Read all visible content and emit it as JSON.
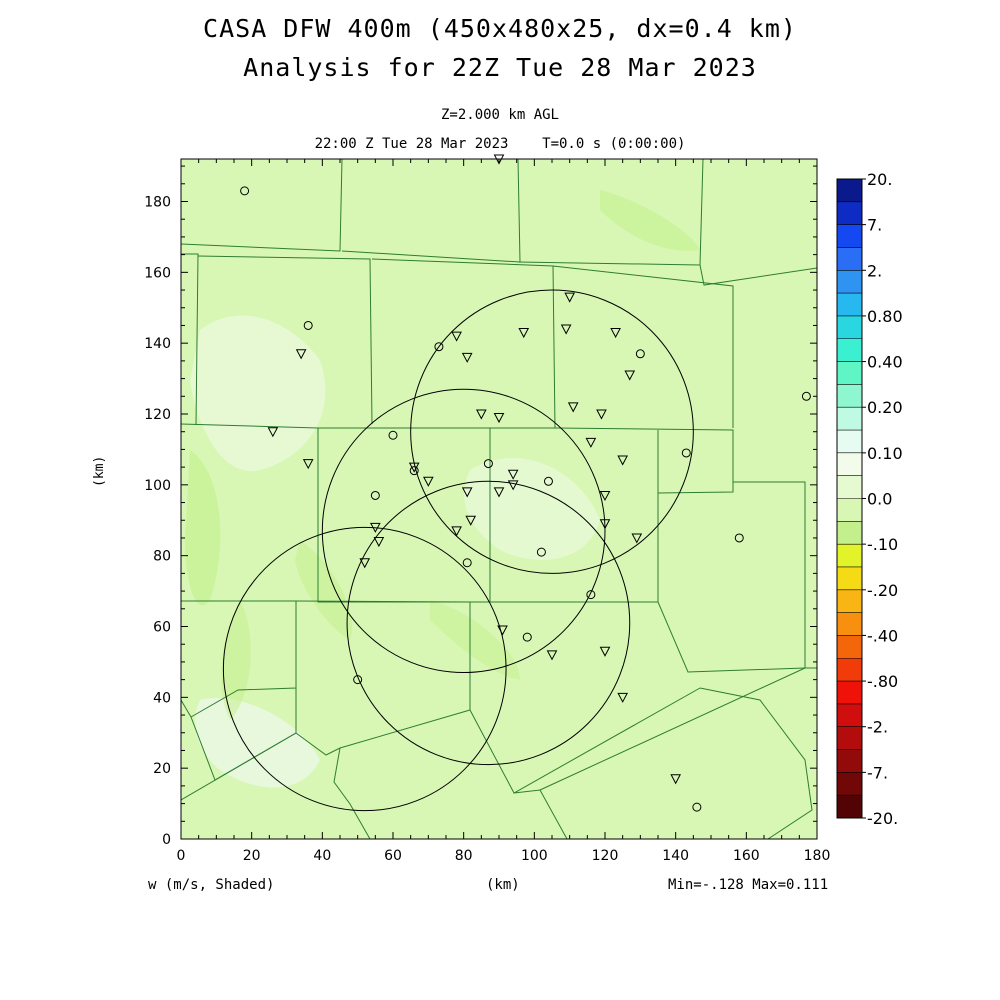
{
  "header": {
    "title_line1": "CASA DFW 400m (450x480x25, dx=0.4 km)",
    "title_line2": "Analysis for 22Z Tue 28 Mar 2023",
    "level": "Z=2.000 km AGL",
    "time": "22:00 Z Tue 28 Mar 2023    T=0.0 s (0:00:00)"
  },
  "footer": {
    "field": "w (m/s, Shaded)",
    "x_unit": "(km)",
    "stats": "Min=-.128 Max=0.111"
  },
  "colors": {
    "background_field": "#d8f7b4",
    "county_lines": "#2e7d32"
  },
  "chart_data": {
    "type": "heatmap",
    "xlabel": "(km)",
    "ylabel": "(km)",
    "xlim": [
      0,
      180
    ],
    "ylim": [
      0,
      192
    ],
    "x_ticks": [
      0,
      20,
      40,
      60,
      80,
      100,
      120,
      140,
      160,
      180
    ],
    "y_ticks": [
      0,
      20,
      40,
      60,
      80,
      100,
      120,
      140,
      160,
      180
    ],
    "field": "w (m/s)",
    "min": -0.128,
    "max": 0.111,
    "colorbar": {
      "labels": [
        "20.",
        "7.",
        "2.",
        "0.80",
        "0.40",
        "0.20",
        "0.10",
        "0.0",
        "-.10",
        "-.20",
        "-.40",
        "-.80",
        "-2.",
        "-7.",
        "-20."
      ],
      "colors": [
        "#0a1a8c",
        "#0e2bc4",
        "#1448f0",
        "#2a6ef5",
        "#2f93f2",
        "#27b8f0",
        "#2ad6e0",
        "#3bf0d0",
        "#5ff5c4",
        "#8ff7cf",
        "#bffae2",
        "#e6fbf1",
        "#f3fbea",
        "#e6fad2",
        "#d8f7b4",
        "#c3f08c",
        "#e2f32a",
        "#f4db16",
        "#f8b514",
        "#f7900e",
        "#f4660a",
        "#f13b08",
        "#ef1208",
        "#d10e0e",
        "#b30c0c",
        "#930a0a",
        "#720707",
        "#520404"
      ]
    },
    "radar_circles": [
      {
        "center": [
          105,
          115
        ],
        "radius": 40
      },
      {
        "center": [
          80,
          87
        ],
        "radius": 40
      },
      {
        "center": [
          87,
          61
        ],
        "radius": 40
      },
      {
        "center": [
          52,
          48
        ],
        "radius": 40
      }
    ],
    "triangle_markers": [
      [
        90,
        192
      ],
      [
        110,
        153
      ],
      [
        78,
        142
      ],
      [
        97,
        143
      ],
      [
        109,
        144
      ],
      [
        123,
        143
      ],
      [
        81,
        136
      ],
      [
        127,
        131
      ],
      [
        34,
        137
      ],
      [
        111,
        122
      ],
      [
        119,
        120
      ],
      [
        85,
        120
      ],
      [
        90,
        119
      ],
      [
        26,
        115
      ],
      [
        116,
        112
      ],
      [
        125,
        107
      ],
      [
        36,
        106
      ],
      [
        66,
        105
      ],
      [
        94,
        103
      ],
      [
        70,
        101
      ],
      [
        94,
        100
      ],
      [
        81,
        98
      ],
      [
        90,
        98
      ],
      [
        120,
        97
      ],
      [
        82,
        90
      ],
      [
        120,
        89
      ],
      [
        55,
        88
      ],
      [
        78,
        87
      ],
      [
        129,
        85
      ],
      [
        56,
        84
      ],
      [
        52,
        78
      ],
      [
        91,
        59
      ],
      [
        105,
        52
      ],
      [
        120,
        53
      ],
      [
        125,
        40
      ],
      [
        140,
        17
      ]
    ],
    "circle_markers": [
      [
        18,
        183
      ],
      [
        36,
        145
      ],
      [
        73,
        139
      ],
      [
        130,
        137
      ],
      [
        177,
        125
      ],
      [
        60,
        114
      ],
      [
        143,
        109
      ],
      [
        87,
        106
      ],
      [
        66,
        104
      ],
      [
        104,
        101
      ],
      [
        55,
        97
      ],
      [
        102,
        81
      ],
      [
        158,
        85
      ],
      [
        81,
        78
      ],
      [
        116,
        69
      ],
      [
        98,
        57
      ],
      [
        50,
        45
      ],
      [
        146,
        9
      ]
    ]
  }
}
